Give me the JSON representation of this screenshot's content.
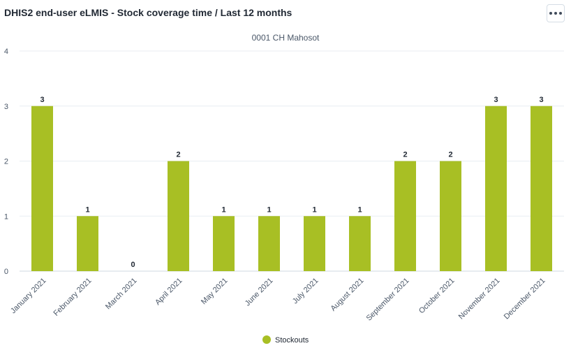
{
  "item": {
    "title": "DHIS2 end-user eLMIS - Stock coverage time / Last 12 months",
    "menu_icon": "more-horizontal-icon"
  },
  "colors": {
    "bar": "#a8bf24",
    "grid": "#e8edf2",
    "axis": "#cfd8e0"
  },
  "chart_data": {
    "type": "bar",
    "subtitle": "0001 CH Mahosot",
    "categories": [
      "January 2021",
      "February 2021",
      "March 2021",
      "April 2021",
      "May 2021",
      "June 2021",
      "July 2021",
      "August 2021",
      "September 2021",
      "October 2021",
      "November 2021",
      "December 2021"
    ],
    "series": [
      {
        "name": "Stockouts",
        "values": [
          3,
          1,
          0,
          2,
          1,
          1,
          1,
          1,
          2,
          2,
          3,
          3
        ]
      }
    ],
    "ylim": [
      0,
      4
    ],
    "yticks": [
      0,
      1,
      2,
      3,
      4
    ],
    "grid": true,
    "data_labels": true,
    "legend": "bottom-center"
  }
}
